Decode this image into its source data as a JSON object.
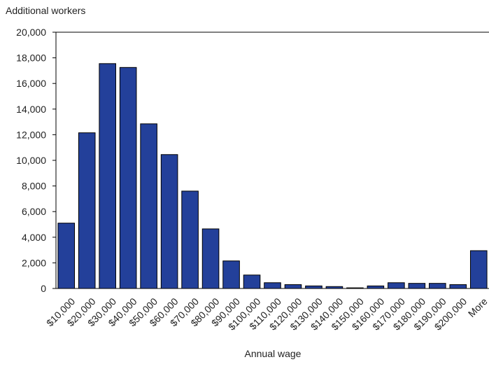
{
  "chart_data": {
    "type": "bar",
    "y_axis_title": "Additional workers",
    "x_axis_title": "Annual wage",
    "categories": [
      "$10,000",
      "$20,000",
      "$30,000",
      "$40,000",
      "$50,000",
      "$60,000",
      "$70,000",
      "$80,000",
      "$90,000",
      "$100,000",
      "$110,000",
      "$120,000",
      "$130,000",
      "$140,000",
      "$150,000",
      "$160,000",
      "$170,000",
      "$180,000",
      "$190,000",
      "$200,000",
      "More"
    ],
    "values": [
      5100,
      12150,
      17550,
      17250,
      12850,
      10450,
      7600,
      4650,
      2150,
      1050,
      450,
      300,
      200,
      150,
      50,
      200,
      450,
      400,
      400,
      300,
      2950
    ],
    "color": "#23409a",
    "ylim": [
      0,
      20000
    ],
    "yticks": [
      0,
      {
        "value": 2000,
        "label": "2,000"
      },
      {
        "value": 4000,
        "label": "4,000"
      },
      {
        "value": 6000,
        "label": "6,000"
      },
      {
        "value": 8000,
        "label": "8,000"
      },
      {
        "value": 10000,
        "label": "10,000"
      },
      {
        "value": 12000,
        "label": "12,000"
      },
      {
        "value": 14000,
        "label": "14,000"
      },
      {
        "value": 16000,
        "label": "16,000"
      },
      {
        "value": 18000,
        "label": "18,000"
      },
      {
        "value": 20000,
        "label": "20,000"
      }
    ],
    "grid": false
  }
}
